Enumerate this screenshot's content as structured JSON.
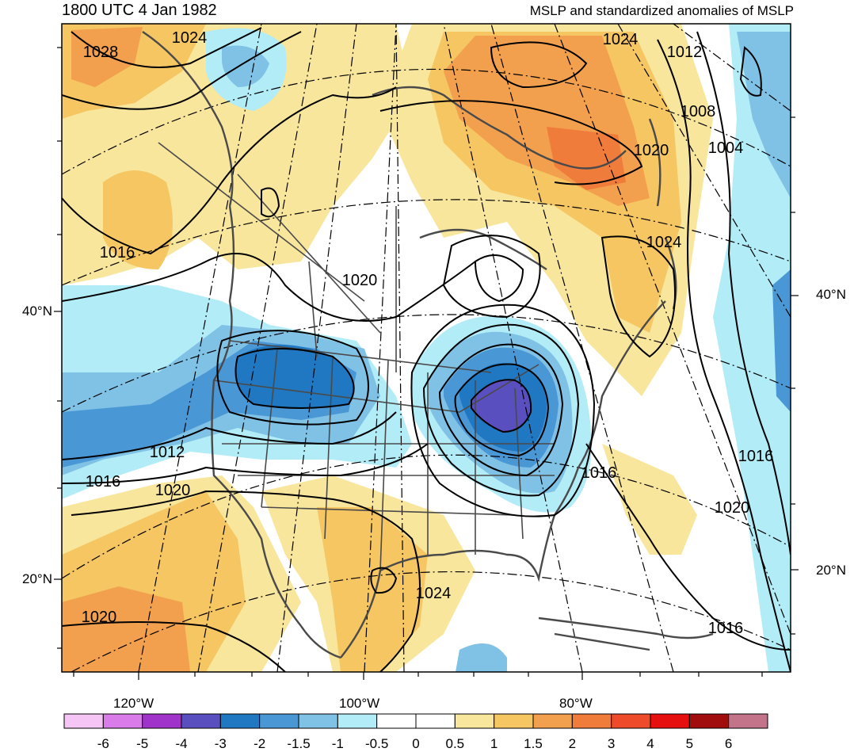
{
  "title_left": "1800 UTC 4 Jan 1982",
  "title_right": "MSLP and standardized anomalies of MSLP",
  "lat_labels": [
    "40°N",
    "20°N"
  ],
  "lon_labels": [
    "120°W",
    "100°W",
    "80°W"
  ],
  "contour_labels": [
    "1028",
    "1024",
    "1024",
    "1012",
    "1008",
    "1004",
    "1020",
    "1024",
    "1016",
    "1020",
    "1012",
    "1016",
    "1020",
    "1016",
    "1016",
    "1020",
    "1024",
    "1020",
    "1016"
  ],
  "colorbar": {
    "ticks": [
      "-6",
      "-5",
      "-4",
      "-3",
      "-2",
      "-1.5",
      "-1",
      "-0.5",
      "0",
      "0.5",
      "1",
      "1.5",
      "2",
      "3",
      "4",
      "5",
      "6"
    ],
    "colors": [
      "#f5c6f5",
      "#d97be8",
      "#a033c9",
      "#5a4fbf",
      "#1f78c1",
      "#4a97d6",
      "#80c2e5",
      "#b2ecf7",
      "#ffffff",
      "#ffffff",
      "#f8e69d",
      "#f5c662",
      "#f2a04e",
      "#f07c3c",
      "#ee4b2b",
      "#e60f10",
      "#a10d0d",
      "#c4748a"
    ]
  },
  "colors": {
    "frame": "#000000",
    "boundaries": "#4a4a4a"
  }
}
